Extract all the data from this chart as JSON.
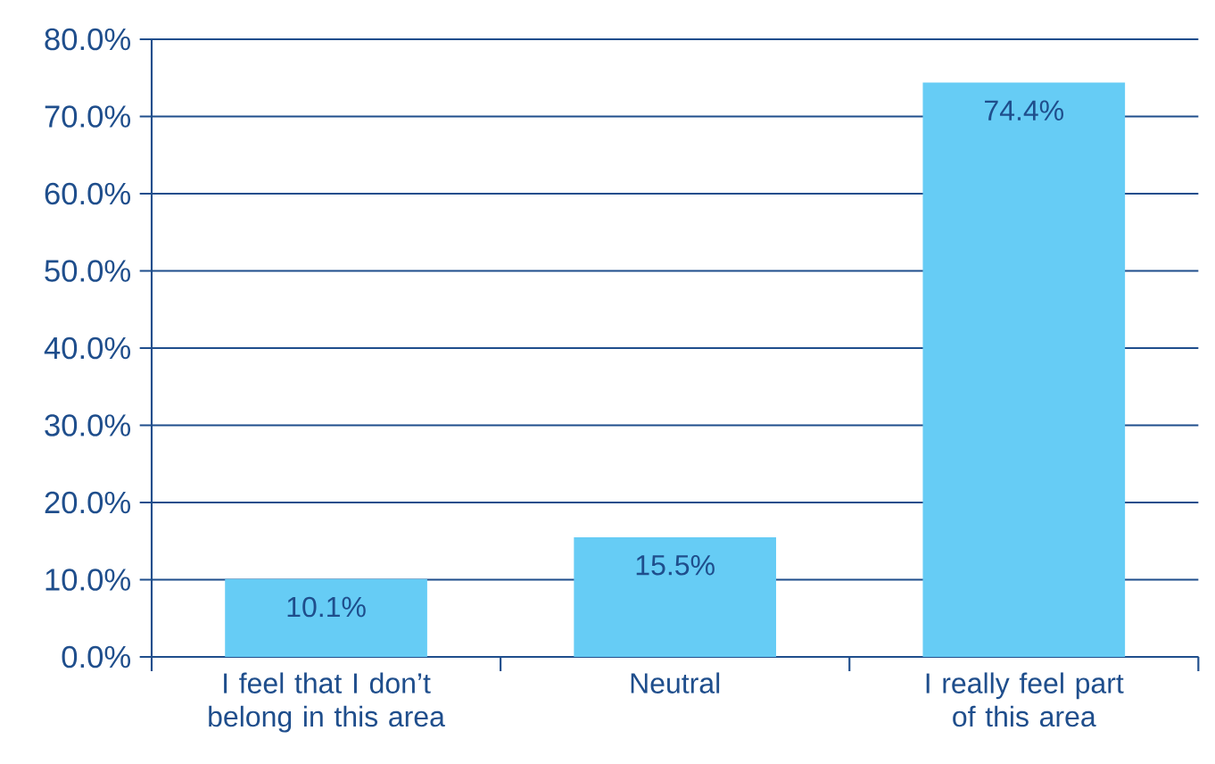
{
  "chart_data": {
    "type": "bar",
    "categories": [
      "I feel that I don’t belong in this area",
      "Neutral",
      "I really feel part of this area"
    ],
    "values": [
      10.1,
      15.5,
      74.4
    ],
    "value_labels": [
      "10.1%",
      "15.5%",
      "74.4%"
    ],
    "color": "#66ccf5",
    "ylim": [
      0,
      80
    ],
    "yticks": [
      {
        "value": 0,
        "label": "0.0%"
      },
      {
        "value": 10,
        "label": "10.0%"
      },
      {
        "value": 20,
        "label": "20.0%"
      },
      {
        "value": 30,
        "label": "30.0%"
      },
      {
        "value": 40,
        "label": "40.0%"
      },
      {
        "value": 50,
        "label": "50.0%"
      },
      {
        "value": 60,
        "label": "60.0%"
      },
      {
        "value": 70,
        "label": "70.0%"
      },
      {
        "value": 80,
        "label": "80.0%"
      }
    ],
    "grid": "y"
  }
}
